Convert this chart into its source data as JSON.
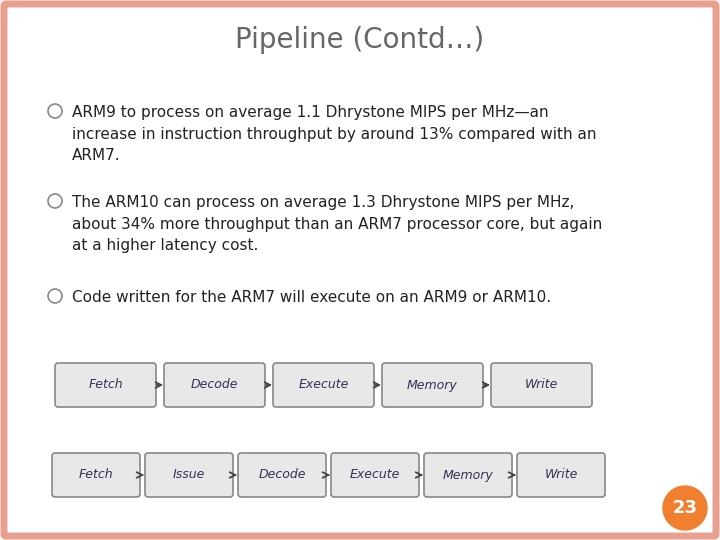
{
  "title_line1": "P",
  "title_line2": "IPELINE ",
  "title_line3": "(C",
  "title_line4": "ONTD",
  "title_line5": "…)",
  "title_full": "Pipeline (Contd…)",
  "title_fontsize_big": 20,
  "title_fontsize_small": 15,
  "title_color": "#666666",
  "background_color": "#ffffff",
  "slide_bg": "#fdf5f2",
  "border_color": "#e8a090",
  "bullet_color": "#888888",
  "text_color": "#222222",
  "bullet_points": [
    "ARM9 to process on average 1.1 Dhrystone MIPS per MHz—an\nincrease in instruction throughput by around 13% compared with an\nARM7.",
    "The ARM10 can process on average 1.3 Dhrystone MIPS per MHz,\nabout 34% more throughput than an ARM7 processor core, but again\nat a higher latency cost.",
    "Code written for the ARM7 will execute on an ARM9 or ARM10."
  ],
  "pipeline1": [
    "Fetch",
    "Decode",
    "Execute",
    "Memory",
    "Write"
  ],
  "pipeline2": [
    "Fetch",
    "Issue",
    "Decode",
    "Execute",
    "Memory",
    "Write"
  ],
  "page_number": "23",
  "page_circle_color": "#f08030",
  "text_fontsize": 11,
  "box_facecolor": "#e8e8e8",
  "box_edgecolor": "#888888",
  "box_text_color": "#333355",
  "arrow_color": "#444444"
}
